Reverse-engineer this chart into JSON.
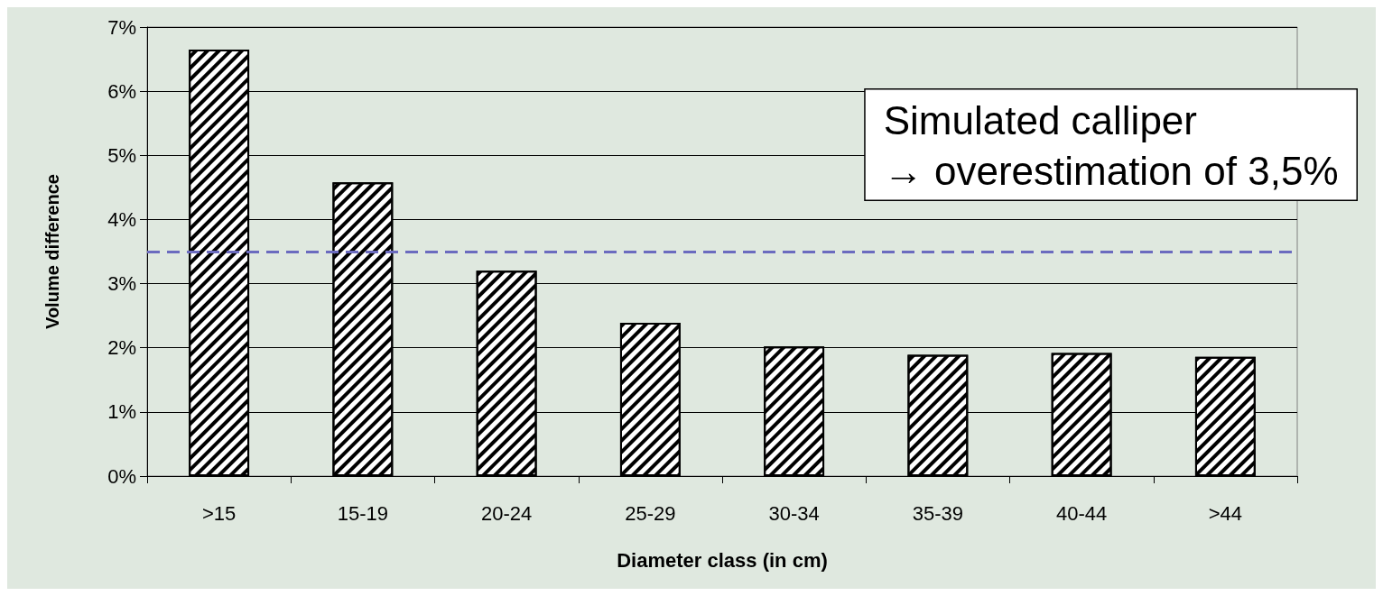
{
  "chart_data": {
    "type": "bar",
    "xlabel": "Diameter class (in cm)",
    "ylabel": "Volume difference",
    "categories": [
      ">15",
      "15-19",
      "20-24",
      "25-29",
      "30-34",
      "35-39",
      "40-44",
      ">44"
    ],
    "values": [
      6.65,
      4.58,
      3.2,
      2.39,
      2.02,
      1.89,
      1.92,
      1.86
    ],
    "color": "#ffffff",
    "ylim": [
      0,
      7
    ],
    "yticks": [
      {
        "value": 0,
        "label": "0%"
      },
      {
        "value": 1,
        "label": "1%"
      },
      {
        "value": 2,
        "label": "2%"
      },
      {
        "value": 3,
        "label": "3%"
      },
      {
        "value": 4,
        "label": "4%"
      },
      {
        "value": 5,
        "label": "5%"
      },
      {
        "value": 6,
        "label": "6%"
      },
      {
        "value": 7,
        "label": "7%"
      }
    ],
    "grid": "y",
    "ref_lines": [
      {
        "axis": "y",
        "value": 3.5,
        "color": "#6b6bbf",
        "line_style": "dashed"
      }
    ],
    "annotations": [
      "Simulated calliper\n→ overestimation of 3,5%"
    ]
  }
}
